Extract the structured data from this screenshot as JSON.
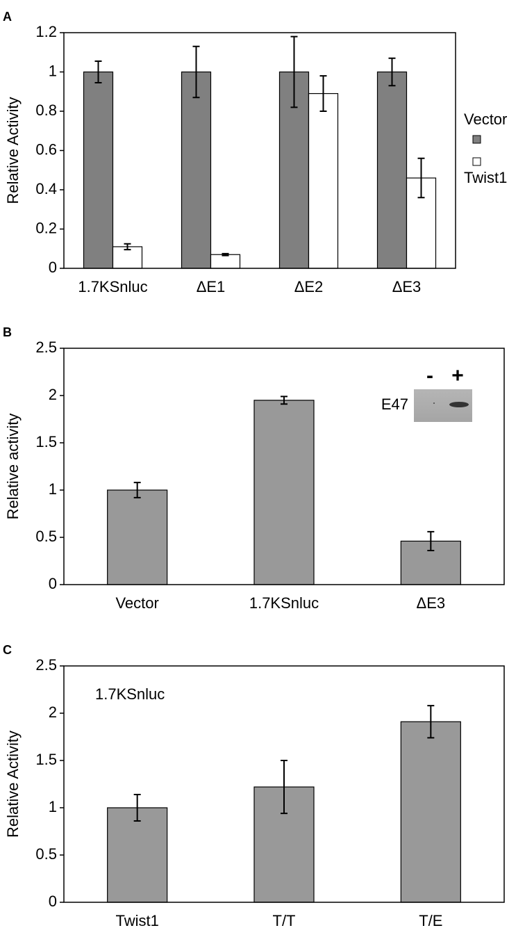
{
  "chart_data": [
    {
      "type": "bar",
      "panel": "A",
      "ylabel": "Relative Activity",
      "categories": [
        "1.7KSnluc",
        "ΔE1",
        "ΔE2",
        "ΔE3"
      ],
      "series": [
        {
          "name": "Vector",
          "color": "#808080",
          "values": [
            1,
            1,
            1,
            1
          ],
          "errors": [
            0.055,
            0.13,
            0.18,
            0.07
          ]
        },
        {
          "name": "Twist1",
          "color": "#ffffff",
          "values": [
            0.11,
            0.07,
            0.89,
            0.46
          ],
          "errors": [
            0.015,
            0.005,
            0.09,
            0.1
          ]
        }
      ],
      "ylim": [
        0,
        1.2
      ],
      "yticks": [
        0,
        0.2,
        0.4,
        0.6,
        0.8,
        1,
        1.2
      ]
    },
    {
      "type": "bar",
      "panel": "B",
      "ylabel": "Relative activity",
      "categories": [
        "Vector",
        "1.7KSnluc",
        "ΔE3"
      ],
      "values": [
        1,
        1.95,
        0.46
      ],
      "errors": [
        0.08,
        0.04,
        0.1
      ],
      "color": "#999999",
      "inset": {
        "label": "E47",
        "lanes": [
          "-",
          "+"
        ]
      },
      "ylim": [
        0,
        2.5
      ],
      "yticks": [
        0,
        0.5,
        1,
        1.5,
        2,
        2.5
      ]
    },
    {
      "type": "bar",
      "panel": "C",
      "ylabel": "Relative Activity",
      "annotation": "1.7KSnluc",
      "categories": [
        "Twist1",
        "T/T",
        "T/E"
      ],
      "values": [
        1,
        1.22,
        1.91
      ],
      "errors": [
        0.14,
        0.28,
        0.17
      ],
      "color": "#999999",
      "ylim": [
        0,
        2.5
      ],
      "yticks": [
        0,
        0.5,
        1,
        1.5,
        2,
        2.5
      ]
    }
  ]
}
